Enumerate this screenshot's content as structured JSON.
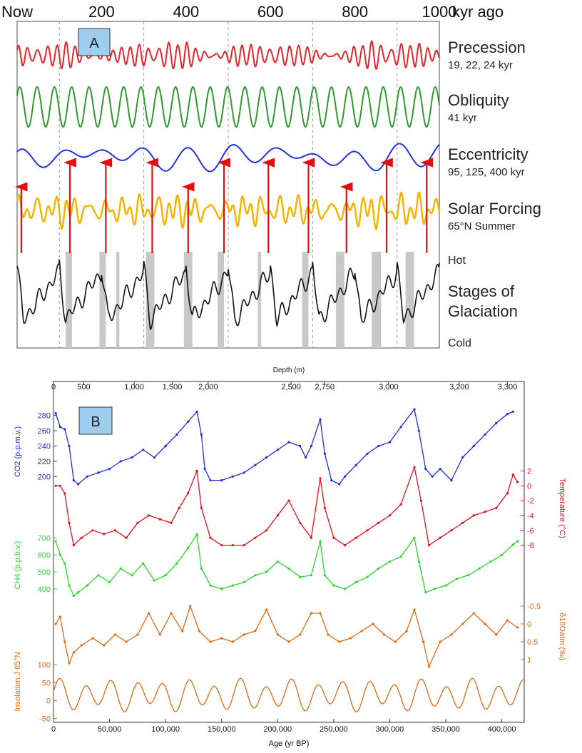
{
  "chart_data": [
    {
      "type": "line",
      "label": "A",
      "x_unit_text": "kyr ago",
      "x_ticks": [
        {
          "value": 0,
          "label": "Now"
        },
        {
          "value": 200,
          "label": "200"
        },
        {
          "value": 400,
          "label": "400"
        },
        {
          "value": 600,
          "label": "600"
        },
        {
          "value": 800,
          "label": "800"
        },
        {
          "value": 1000,
          "label": "1000"
        }
      ],
      "xlim": [
        0,
        1000
      ],
      "series": [
        {
          "name": "Precession",
          "subtitle": "19, 22, 24 kyr",
          "color": "#e8232a",
          "periods_kyr": [
            19,
            22,
            24
          ]
        },
        {
          "name": "Obliquity",
          "subtitle": "41 kyr",
          "color": "#2e9a2e",
          "periods_kyr": [
            41
          ]
        },
        {
          "name": "Eccentricity",
          "subtitle": "95, 125, 400 kyr",
          "color": "#2233dd",
          "periods_kyr": [
            95,
            125,
            400
          ]
        },
        {
          "name": "Solar Forcing",
          "subtitle": "65°N Summer",
          "color": "#f5b400"
        },
        {
          "name": "Stages of Glaciation",
          "subtitle": "",
          "color": "#111111"
        }
      ],
      "glaciation_labels": {
        "hot": "Hot",
        "cold": "Cold"
      },
      "interglacial_arrows_kyr": [
        10,
        125,
        210,
        320,
        405,
        490,
        595,
        690,
        780,
        875,
        970
      ],
      "interglacial_bands_kyr": [
        [
          115,
          130
        ],
        [
          195,
          210
        ],
        [
          235,
          242
        ],
        [
          305,
          325
        ],
        [
          395,
          415
        ],
        [
          475,
          490
        ],
        [
          570,
          578
        ],
        [
          675,
          690
        ],
        [
          755,
          775
        ],
        [
          840,
          862
        ],
        [
          920,
          940
        ]
      ],
      "dashed_gridlines_kyr": [
        100,
        300,
        500,
        700,
        900,
        1000
      ]
    },
    {
      "type": "line",
      "label": "B",
      "top_axis": {
        "title": "Depth (m)",
        "ticks": [
          {
            "age": 0,
            "label": "0"
          },
          {
            "age": 27000,
            "label": "500"
          },
          {
            "age": 72000,
            "label": "1,000"
          },
          {
            "age": 106000,
            "label": "1,500"
          },
          {
            "age": 138000,
            "label": "2,000"
          },
          {
            "age": 212000,
            "label": "2,500"
          },
          {
            "age": 242000,
            "label": "2,750"
          },
          {
            "age": 299000,
            "label": "3,000"
          },
          {
            "age": 362000,
            "label": "3,200"
          },
          {
            "age": 405000,
            "label": "3,300"
          }
        ]
      },
      "x_axis": {
        "title": "Age (yr BP)",
        "xlim": [
          0,
          420000
        ],
        "ticks": [
          0,
          50000,
          100000,
          150000,
          200000,
          250000,
          300000,
          350000,
          400000
        ],
        "tick_labels": [
          "0",
          "50,000",
          "100,000",
          "150,000",
          "200,000",
          "250,000",
          "300,000",
          "350,000",
          "400,000"
        ]
      },
      "series": [
        {
          "name": "CO2",
          "axis_label": "CO2 (p.p.m.v.)",
          "color": "#1f2fd4",
          "side": "left",
          "ticks": [
            200,
            220,
            240,
            260,
            280
          ],
          "ylim": [
            175,
            290
          ],
          "points": [
            [
              2000,
              283
            ],
            [
              6000,
              265
            ],
            [
              10000,
              262
            ],
            [
              14000,
              240
            ],
            [
              18000,
              195
            ],
            [
              22000,
              190
            ],
            [
              30000,
              200
            ],
            [
              40000,
              205
            ],
            [
              50000,
              210
            ],
            [
              60000,
              220
            ],
            [
              70000,
              225
            ],
            [
              80000,
              235
            ],
            [
              90000,
              225
            ],
            [
              100000,
              240
            ],
            [
              110000,
              255
            ],
            [
              120000,
              272
            ],
            [
              128000,
              285
            ],
            [
              132000,
              255
            ],
            [
              135000,
              210
            ],
            [
              140000,
              195
            ],
            [
              150000,
              195
            ],
            [
              160000,
              200
            ],
            [
              170000,
              205
            ],
            [
              180000,
              215
            ],
            [
              190000,
              225
            ],
            [
              200000,
              235
            ],
            [
              210000,
              245
            ],
            [
              220000,
              240
            ],
            [
              225000,
              225
            ],
            [
              230000,
              240
            ],
            [
              238000,
              275
            ],
            [
              242000,
              230
            ],
            [
              248000,
              195
            ],
            [
              255000,
              190
            ],
            [
              260000,
              200
            ],
            [
              270000,
              215
            ],
            [
              280000,
              230
            ],
            [
              290000,
              240
            ],
            [
              300000,
              245
            ],
            [
              310000,
              265
            ],
            [
              322000,
              288
            ],
            [
              326000,
              260
            ],
            [
              332000,
              210
            ],
            [
              338000,
              200
            ],
            [
              345000,
              210
            ],
            [
              355000,
              195
            ],
            [
              365000,
              225
            ],
            [
              375000,
              240
            ],
            [
              385000,
              255
            ],
            [
              395000,
              270
            ],
            [
              405000,
              282
            ],
            [
              410000,
              285
            ]
          ]
        },
        {
          "name": "Temperature",
          "axis_label": "Temperature (°C)",
          "color": "#e0101a",
          "side": "right",
          "ticks": [
            2,
            0,
            -2,
            -4,
            -6,
            -8
          ],
          "ylim": [
            -9,
            3
          ],
          "points": [
            [
              2000,
              0
            ],
            [
              6000,
              0
            ],
            [
              10000,
              -1
            ],
            [
              14000,
              -5
            ],
            [
              18000,
              -8
            ],
            [
              25000,
              -7
            ],
            [
              35000,
              -6
            ],
            [
              45000,
              -6.5
            ],
            [
              55000,
              -6
            ],
            [
              65000,
              -7
            ],
            [
              75000,
              -5
            ],
            [
              85000,
              -4
            ],
            [
              95000,
              -4.5
            ],
            [
              105000,
              -5
            ],
            [
              112000,
              -3
            ],
            [
              120000,
              -1
            ],
            [
              128000,
              2
            ],
            [
              132000,
              -3
            ],
            [
              140000,
              -7
            ],
            [
              150000,
              -8
            ],
            [
              160000,
              -8
            ],
            [
              170000,
              -8
            ],
            [
              180000,
              -7
            ],
            [
              190000,
              -6
            ],
            [
              200000,
              -4
            ],
            [
              210000,
              -2
            ],
            [
              220000,
              -5
            ],
            [
              230000,
              -7
            ],
            [
              238000,
              1
            ],
            [
              242000,
              -3
            ],
            [
              250000,
              -7
            ],
            [
              260000,
              -8
            ],
            [
              270000,
              -7
            ],
            [
              280000,
              -6
            ],
            [
              290000,
              -5
            ],
            [
              300000,
              -4
            ],
            [
              310000,
              -2.5
            ],
            [
              322000,
              2.5
            ],
            [
              328000,
              -2
            ],
            [
              335000,
              -8
            ],
            [
              345000,
              -7
            ],
            [
              355000,
              -6
            ],
            [
              365000,
              -5
            ],
            [
              375000,
              -4
            ],
            [
              385000,
              -3.5
            ],
            [
              395000,
              -3
            ],
            [
              405000,
              -1
            ],
            [
              410000,
              1.5
            ],
            [
              414000,
              0.5
            ]
          ]
        },
        {
          "name": "CH4",
          "axis_label": "CH4 (p.p.b.v.)",
          "color": "#2bd62b",
          "side": "left",
          "ticks": [
            400,
            500,
            600,
            700
          ],
          "ylim": [
            320,
            760
          ],
          "points": [
            [
              2000,
              680
            ],
            [
              6000,
              600
            ],
            [
              10000,
              550
            ],
            [
              14000,
              420
            ],
            [
              18000,
              360
            ],
            [
              22000,
              380
            ],
            [
              30000,
              420
            ],
            [
              40000,
              480
            ],
            [
              50000,
              440
            ],
            [
              60000,
              520
            ],
            [
              70000,
              480
            ],
            [
              80000,
              550
            ],
            [
              90000,
              450
            ],
            [
              100000,
              480
            ],
            [
              110000,
              550
            ],
            [
              120000,
              640
            ],
            [
              128000,
              720
            ],
            [
              132000,
              520
            ],
            [
              140000,
              420
            ],
            [
              150000,
              400
            ],
            [
              160000,
              420
            ],
            [
              170000,
              440
            ],
            [
              180000,
              480
            ],
            [
              190000,
              500
            ],
            [
              200000,
              560
            ],
            [
              210000,
              520
            ],
            [
              220000,
              470
            ],
            [
              230000,
              480
            ],
            [
              238000,
              680
            ],
            [
              242000,
              480
            ],
            [
              250000,
              420
            ],
            [
              260000,
              400
            ],
            [
              270000,
              440
            ],
            [
              280000,
              470
            ],
            [
              290000,
              520
            ],
            [
              300000,
              560
            ],
            [
              310000,
              590
            ],
            [
              322000,
              700
            ],
            [
              326000,
              560
            ],
            [
              332000,
              380
            ],
            [
              340000,
              400
            ],
            [
              350000,
              420
            ],
            [
              360000,
              460
            ],
            [
              370000,
              480
            ],
            [
              380000,
              520
            ],
            [
              390000,
              560
            ],
            [
              400000,
              600
            ],
            [
              410000,
              660
            ],
            [
              414000,
              680
            ]
          ]
        },
        {
          "name": "δ18Oatm",
          "axis_label": "δ18Oatm (‰)",
          "color": "#e06a12",
          "side": "right",
          "ticks": [
            -0.5,
            0.0,
            0.5,
            1.0
          ],
          "ylim": [
            1.4,
            -0.7
          ],
          "points": [
            [
              2000,
              0.0
            ],
            [
              6000,
              -0.2
            ],
            [
              10000,
              0.5
            ],
            [
              14000,
              1.1
            ],
            [
              18000,
              0.8
            ],
            [
              25000,
              0.6
            ],
            [
              35000,
              0.4
            ],
            [
              45000,
              0.6
            ],
            [
              55000,
              0.3
            ],
            [
              65000,
              0.5
            ],
            [
              75000,
              0.3
            ],
            [
              85000,
              -0.3
            ],
            [
              95000,
              0.3
            ],
            [
              105000,
              -0.3
            ],
            [
              115000,
              0.2
            ],
            [
              122000,
              -0.5
            ],
            [
              130000,
              0.2
            ],
            [
              140000,
              0.5
            ],
            [
              150000,
              0.4
            ],
            [
              160000,
              0.5
            ],
            [
              170000,
              0.3
            ],
            [
              180000,
              0.2
            ],
            [
              190000,
              -0.4
            ],
            [
              200000,
              0.3
            ],
            [
              210000,
              0.5
            ],
            [
              220000,
              0.3
            ],
            [
              230000,
              -0.3
            ],
            [
              238000,
              -0.3
            ],
            [
              245000,
              0.3
            ],
            [
              255000,
              0.5
            ],
            [
              265000,
              0.4
            ],
            [
              275000,
              0.2
            ],
            [
              285000,
              0.0
            ],
            [
              295000,
              0.3
            ],
            [
              305000,
              0.5
            ],
            [
              315000,
              0.2
            ],
            [
              322000,
              -0.4
            ],
            [
              330000,
              0.5
            ],
            [
              335000,
              1.2
            ],
            [
              345000,
              0.5
            ],
            [
              355000,
              0.3
            ],
            [
              365000,
              0.0
            ],
            [
              375000,
              -0.3
            ],
            [
              385000,
              0.0
            ],
            [
              395000,
              0.3
            ],
            [
              405000,
              -0.1
            ],
            [
              414000,
              0.1
            ]
          ]
        },
        {
          "name": "Insolation",
          "axis_label": "Insolation J 65°N",
          "color": "#e06a12",
          "side": "left",
          "ticks": [
            -50,
            0,
            50,
            100
          ],
          "ylim": [
            -55,
            160
          ],
          "periods_yr": [
            23000,
            41000
          ]
        }
      ]
    }
  ]
}
